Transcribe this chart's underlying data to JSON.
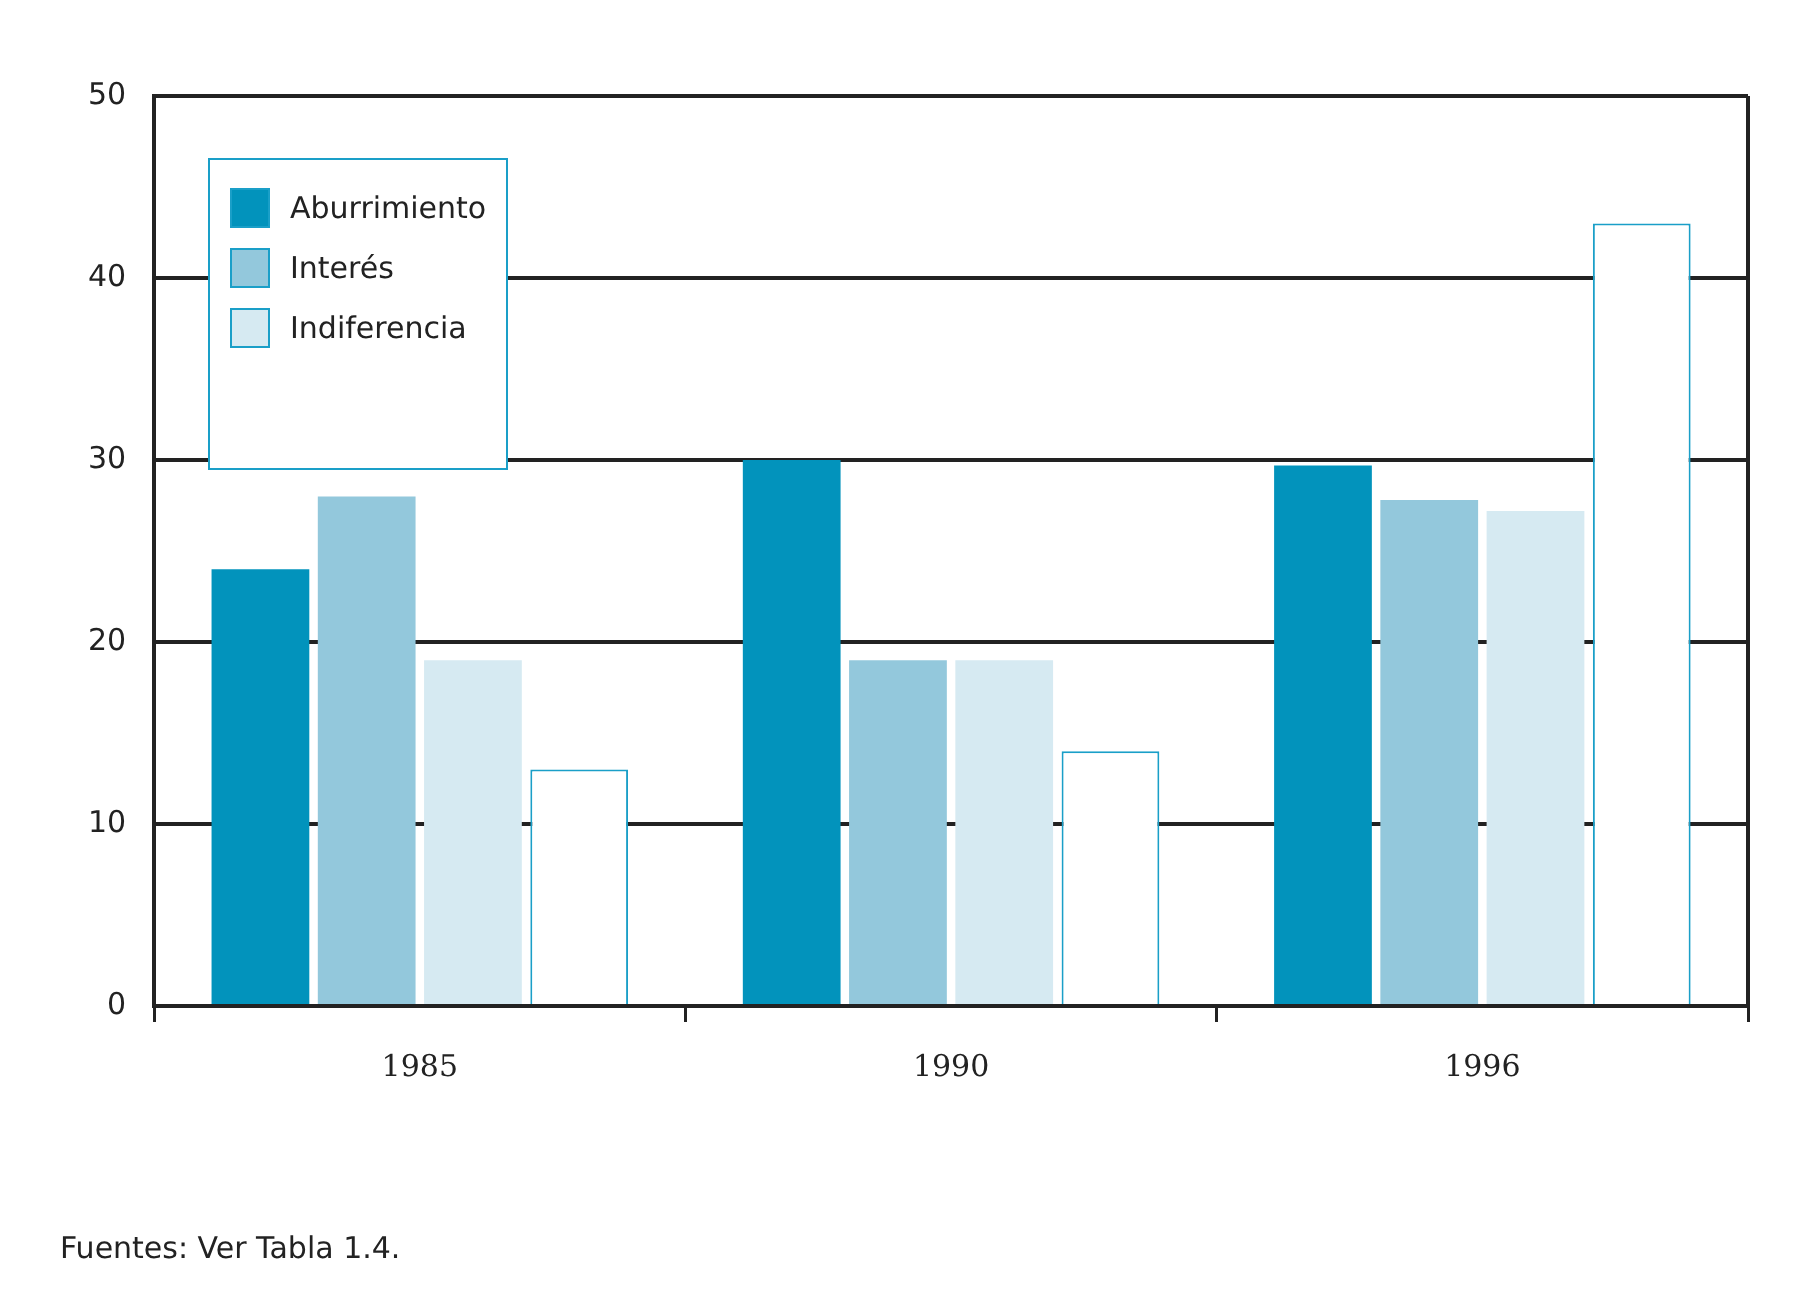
{
  "chart_data": {
    "type": "bar",
    "categories": [
      "1985",
      "1990",
      "1996"
    ],
    "series": [
      {
        "name": "Aburrimiento",
        "color": "#0293bc",
        "values": [
          24,
          30,
          29.7
        ]
      },
      {
        "name": "Interés",
        "color": "#93c8dc",
        "values": [
          28,
          19,
          27.8
        ]
      },
      {
        "name": "Indiferencia",
        "color": "#d6eaf2",
        "values": [
          19,
          19,
          27.2
        ]
      },
      {
        "color": "#ffffff",
        "values": [
          13,
          14,
          43
        ]
      }
    ],
    "ylim": [
      0,
      50
    ],
    "yticks": [
      0,
      10,
      20,
      30,
      40,
      50
    ],
    "grid": "y",
    "legend": "top left",
    "annotations": [
      "Fuentes: Ver Tabla 1.4."
    ]
  }
}
